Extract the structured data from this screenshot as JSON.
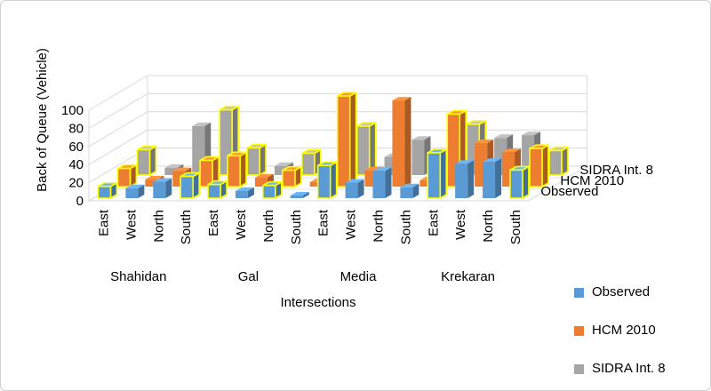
{
  "chart_data": {
    "type": "bar",
    "subtype": "3d-clustered-column",
    "ylabel": "Back of Queue (Vehicle)",
    "xlabel": "Intersections",
    "ylim": [
      0,
      100
    ],
    "yticks": [
      0,
      20,
      40,
      60,
      80,
      100
    ],
    "grid": true,
    "legend_position": "bottom-right",
    "groups": [
      {
        "name": "Shahidan",
        "approaches": [
          "East",
          "West",
          "North",
          "South"
        ]
      },
      {
        "name": "Gal",
        "approaches": [
          "East",
          "West",
          "North",
          "South"
        ]
      },
      {
        "name": "Media",
        "approaches": [
          "East",
          "West",
          "North",
          "South"
        ]
      },
      {
        "name": "Krekaran",
        "approaches": [
          "East",
          "West",
          "North",
          "South"
        ]
      }
    ],
    "categories": [
      "East",
      "West",
      "North",
      "South",
      "East",
      "West",
      "North",
      "South",
      "East",
      "West",
      "North",
      "South",
      "East",
      "West",
      "North",
      "South"
    ],
    "series": [
      {
        "name": "Observed",
        "color": "#5B9BD5",
        "values": [
          13,
          11,
          18,
          24,
          15,
          8,
          14,
          3,
          36,
          17,
          30,
          12,
          50,
          38,
          40,
          31
        ]
      },
      {
        "name": "HCM 2010",
        "color": "#ED7D31",
        "values": [
          20,
          8,
          17,
          29,
          34,
          10,
          18,
          5,
          100,
          18,
          95,
          7,
          80,
          48,
          38,
          42
        ]
      },
      {
        "name": "SIDRA Int. 8",
        "color": "#A5A5A5",
        "values": [
          28,
          8,
          54,
          72,
          30,
          10,
          24,
          5,
          54,
          20,
          39,
          17,
          56,
          41,
          44,
          27
        ]
      }
    ],
    "highlighted_bars": {
      "Observed": [
        0,
        3,
        4,
        6,
        8,
        12,
        15
      ],
      "HCM 2010": [
        0,
        3,
        4,
        6,
        8,
        12,
        15
      ],
      "SIDRA Int. 8": [
        0,
        3,
        4,
        6,
        8,
        12,
        15
      ]
    },
    "highlight_color": "#FFFF00"
  },
  "legend": {
    "items": [
      {
        "label": "Observed",
        "color": "#5B9BD5"
      },
      {
        "label": "HCM 2010",
        "color": "#ED7D31"
      },
      {
        "label": "SIDRA Int. 8",
        "color": "#A5A5A5"
      }
    ]
  }
}
